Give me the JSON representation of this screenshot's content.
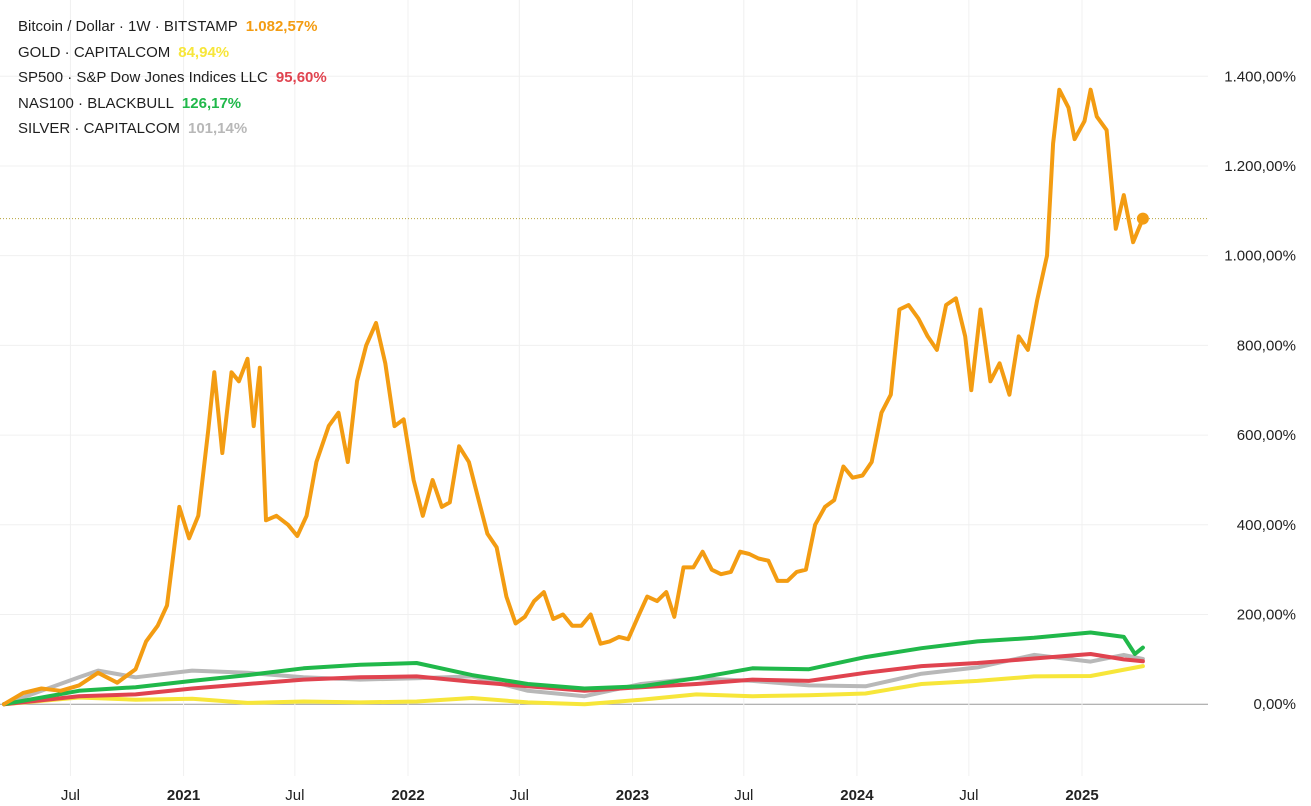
{
  "legend": [
    {
      "label": "Bitcoin / Dollar · 1W · BITSTAMP",
      "value": "1.082,57%",
      "color": "#f39c12"
    },
    {
      "label": "GOLD · CAPITALCOM",
      "value": "84,94%",
      "color": "#f7e63a"
    },
    {
      "label": "SP500 · S&P Dow Jones Indices LLC",
      "value": "95,60%",
      "color": "#e0434f"
    },
    {
      "label": "NAS100 · BLACKBULL",
      "value": "126,17%",
      "color": "#20b84a"
    },
    {
      "label": "SILVER · CAPITALCOM",
      "value": "101,14%",
      "color": "#b8b8b8"
    }
  ],
  "chart_data": {
    "type": "line",
    "x_ticks": [
      {
        "label": "Jul",
        "x": "2020-07-01",
        "bold": false
      },
      {
        "label": "2021",
        "x": "2021-01-01",
        "bold": true
      },
      {
        "label": "Jul",
        "x": "2021-07-01",
        "bold": false
      },
      {
        "label": "2022",
        "x": "2022-01-01",
        "bold": true
      },
      {
        "label": "Jul",
        "x": "2022-07-01",
        "bold": false
      },
      {
        "label": "2023",
        "x": "2023-01-01",
        "bold": true
      },
      {
        "label": "Jul",
        "x": "2023-07-01",
        "bold": false
      },
      {
        "label": "2024",
        "x": "2024-01-01",
        "bold": true
      },
      {
        "label": "Jul",
        "x": "2024-07-01",
        "bold": false
      },
      {
        "label": "2025",
        "x": "2025-01-01",
        "bold": true
      }
    ],
    "y_ticks": [
      {
        "value": 0,
        "label": "0,00%"
      },
      {
        "value": 200,
        "label": "200,00%"
      },
      {
        "value": 400,
        "label": "400,00%"
      },
      {
        "value": 600,
        "label": "600,00%"
      },
      {
        "value": 800,
        "label": "800,00%"
      },
      {
        "value": 1000,
        "label": "1.000,00%"
      },
      {
        "value": 1200,
        "label": "1.200,00%"
      },
      {
        "value": 1400,
        "label": "1.400,00%"
      }
    ],
    "ylim": [
      -160,
      1570
    ],
    "xlim": [
      "2020-03-15",
      "2025-07-20"
    ],
    "grid": true,
    "last_value_line": {
      "series": "Bitcoin / Dollar · 1W · BITSTAMP",
      "value": 1082.57
    },
    "series": [
      {
        "name": "Bitcoin / Dollar · 1W · BITSTAMP",
        "color": "#f39c12",
        "points": [
          [
            "2020-03-15",
            0
          ],
          [
            "2020-04-15",
            25
          ],
          [
            "2020-05-15",
            35
          ],
          [
            "2020-06-15",
            30
          ],
          [
            "2020-07-15",
            42
          ],
          [
            "2020-08-15",
            70
          ],
          [
            "2020-09-15",
            48
          ],
          [
            "2020-10-15",
            78
          ],
          [
            "2020-11-01",
            140
          ],
          [
            "2020-11-20",
            175
          ],
          [
            "2020-12-05",
            220
          ],
          [
            "2020-12-25",
            440
          ],
          [
            "2021-01-10",
            370
          ],
          [
            "2021-01-25",
            420
          ],
          [
            "2021-02-10",
            610
          ],
          [
            "2021-02-20",
            740
          ],
          [
            "2021-03-05",
            560
          ],
          [
            "2021-03-20",
            740
          ],
          [
            "2021-04-01",
            720
          ],
          [
            "2021-04-15",
            770
          ],
          [
            "2021-04-25",
            620
          ],
          [
            "2021-05-05",
            750
          ],
          [
            "2021-05-15",
            410
          ],
          [
            "2021-06-01",
            420
          ],
          [
            "2021-06-20",
            400
          ],
          [
            "2021-07-05",
            375
          ],
          [
            "2021-07-20",
            420
          ],
          [
            "2021-08-05",
            540
          ],
          [
            "2021-08-25",
            620
          ],
          [
            "2021-09-10",
            650
          ],
          [
            "2021-09-25",
            540
          ],
          [
            "2021-10-10",
            720
          ],
          [
            "2021-10-25",
            800
          ],
          [
            "2021-11-10",
            850
          ],
          [
            "2021-11-25",
            760
          ],
          [
            "2021-12-10",
            620
          ],
          [
            "2021-12-25",
            635
          ],
          [
            "2022-01-10",
            500
          ],
          [
            "2022-01-25",
            420
          ],
          [
            "2022-02-10",
            500
          ],
          [
            "2022-02-25",
            440
          ],
          [
            "2022-03-10",
            450
          ],
          [
            "2022-03-25",
            575
          ],
          [
            "2022-04-10",
            540
          ],
          [
            "2022-04-25",
            460
          ],
          [
            "2022-05-10",
            380
          ],
          [
            "2022-05-25",
            350
          ],
          [
            "2022-06-10",
            240
          ],
          [
            "2022-06-25",
            180
          ],
          [
            "2022-07-10",
            195
          ],
          [
            "2022-07-25",
            230
          ],
          [
            "2022-08-10",
            250
          ],
          [
            "2022-08-25",
            190
          ],
          [
            "2022-09-10",
            200
          ],
          [
            "2022-09-25",
            175
          ],
          [
            "2022-10-10",
            175
          ],
          [
            "2022-10-25",
            200
          ],
          [
            "2022-11-10",
            135
          ],
          [
            "2022-11-25",
            140
          ],
          [
            "2022-12-10",
            150
          ],
          [
            "2022-12-25",
            145
          ],
          [
            "2023-01-10",
            195
          ],
          [
            "2023-01-25",
            240
          ],
          [
            "2023-02-10",
            230
          ],
          [
            "2023-02-25",
            250
          ],
          [
            "2023-03-10",
            195
          ],
          [
            "2023-03-25",
            305
          ],
          [
            "2023-04-10",
            305
          ],
          [
            "2023-04-25",
            340
          ],
          [
            "2023-05-10",
            300
          ],
          [
            "2023-05-25",
            290
          ],
          [
            "2023-06-10",
            295
          ],
          [
            "2023-06-25",
            340
          ],
          [
            "2023-07-10",
            335
          ],
          [
            "2023-07-25",
            325
          ],
          [
            "2023-08-10",
            320
          ],
          [
            "2023-08-25",
            275
          ],
          [
            "2023-09-10",
            275
          ],
          [
            "2023-09-25",
            295
          ],
          [
            "2023-10-10",
            300
          ],
          [
            "2023-10-25",
            400
          ],
          [
            "2023-11-10",
            440
          ],
          [
            "2023-11-25",
            455
          ],
          [
            "2023-12-10",
            530
          ],
          [
            "2023-12-25",
            505
          ],
          [
            "2024-01-10",
            510
          ],
          [
            "2024-01-25",
            540
          ],
          [
            "2024-02-10",
            650
          ],
          [
            "2024-02-25",
            690
          ],
          [
            "2024-03-10",
            880
          ],
          [
            "2024-03-25",
            890
          ],
          [
            "2024-04-10",
            860
          ],
          [
            "2024-04-25",
            820
          ],
          [
            "2024-05-10",
            790
          ],
          [
            "2024-05-25",
            890
          ],
          [
            "2024-06-10",
            905
          ],
          [
            "2024-06-25",
            820
          ],
          [
            "2024-07-05",
            700
          ],
          [
            "2024-07-20",
            880
          ],
          [
            "2024-08-05",
            720
          ],
          [
            "2024-08-20",
            760
          ],
          [
            "2024-09-05",
            690
          ],
          [
            "2024-09-20",
            820
          ],
          [
            "2024-10-05",
            790
          ],
          [
            "2024-10-20",
            900
          ],
          [
            "2024-11-05",
            1000
          ],
          [
            "2024-11-15",
            1250
          ],
          [
            "2024-11-25",
            1370
          ],
          [
            "2024-12-10",
            1330
          ],
          [
            "2024-12-20",
            1260
          ],
          [
            "2025-01-05",
            1300
          ],
          [
            "2025-01-15",
            1370
          ],
          [
            "2025-01-25",
            1310
          ],
          [
            "2025-02-10",
            1280
          ],
          [
            "2025-02-25",
            1060
          ],
          [
            "2025-03-10",
            1135
          ],
          [
            "2025-03-25",
            1030
          ],
          [
            "2025-04-10",
            1082.57
          ]
        ]
      },
      {
        "name": "GOLD · CAPITALCOM",
        "color": "#f7e63a",
        "points": [
          [
            "2020-03-15",
            0
          ],
          [
            "2020-07-15",
            15
          ],
          [
            "2020-10-15",
            10
          ],
          [
            "2021-01-15",
            12
          ],
          [
            "2021-04-15",
            3
          ],
          [
            "2021-07-15",
            6
          ],
          [
            "2021-10-15",
            4
          ],
          [
            "2022-01-15",
            6
          ],
          [
            "2022-04-15",
            14
          ],
          [
            "2022-07-15",
            4
          ],
          [
            "2022-10-15",
            0
          ],
          [
            "2023-01-15",
            10
          ],
          [
            "2023-04-15",
            22
          ],
          [
            "2023-07-15",
            18
          ],
          [
            "2023-10-15",
            20
          ],
          [
            "2024-01-15",
            24
          ],
          [
            "2024-04-15",
            45
          ],
          [
            "2024-07-15",
            52
          ],
          [
            "2024-10-15",
            62
          ],
          [
            "2025-01-15",
            63
          ],
          [
            "2025-04-10",
            84.94
          ]
        ]
      },
      {
        "name": "SP500 · S&P Dow Jones Indices LLC",
        "color": "#e0434f",
        "points": [
          [
            "2020-03-15",
            0
          ],
          [
            "2020-07-15",
            18
          ],
          [
            "2020-10-15",
            22
          ],
          [
            "2021-01-15",
            35
          ],
          [
            "2021-04-15",
            45
          ],
          [
            "2021-07-15",
            55
          ],
          [
            "2021-10-15",
            60
          ],
          [
            "2022-01-15",
            62
          ],
          [
            "2022-04-15",
            50
          ],
          [
            "2022-07-15",
            40
          ],
          [
            "2022-10-15",
            30
          ],
          [
            "2023-01-15",
            38
          ],
          [
            "2023-04-15",
            45
          ],
          [
            "2023-07-15",
            55
          ],
          [
            "2023-10-15",
            52
          ],
          [
            "2024-01-15",
            70
          ],
          [
            "2024-04-15",
            85
          ],
          [
            "2024-07-15",
            92
          ],
          [
            "2024-10-15",
            102
          ],
          [
            "2025-01-15",
            112
          ],
          [
            "2025-03-10",
            100
          ],
          [
            "2025-04-10",
            95.6
          ]
        ]
      },
      {
        "name": "NAS100 · BLACKBULL",
        "color": "#20b84a",
        "points": [
          [
            "2020-03-15",
            0
          ],
          [
            "2020-07-15",
            30
          ],
          [
            "2020-10-15",
            38
          ],
          [
            "2021-01-15",
            52
          ],
          [
            "2021-04-15",
            65
          ],
          [
            "2021-07-15",
            80
          ],
          [
            "2021-10-15",
            88
          ],
          [
            "2022-01-15",
            92
          ],
          [
            "2022-04-15",
            65
          ],
          [
            "2022-07-15",
            45
          ],
          [
            "2022-10-15",
            35
          ],
          [
            "2023-01-15",
            40
          ],
          [
            "2023-04-15",
            58
          ],
          [
            "2023-07-15",
            80
          ],
          [
            "2023-10-15",
            78
          ],
          [
            "2024-01-15",
            105
          ],
          [
            "2024-04-15",
            125
          ],
          [
            "2024-07-15",
            140
          ],
          [
            "2024-10-15",
            148
          ],
          [
            "2025-01-15",
            160
          ],
          [
            "2025-03-10",
            150
          ],
          [
            "2025-03-28",
            112
          ],
          [
            "2025-04-10",
            126.17
          ]
        ]
      },
      {
        "name": "SILVER · CAPITALCOM",
        "color": "#b8b8b8",
        "points": [
          [
            "2020-03-15",
            0
          ],
          [
            "2020-07-15",
            60
          ],
          [
            "2020-08-15",
            75
          ],
          [
            "2020-10-15",
            60
          ],
          [
            "2021-01-15",
            75
          ],
          [
            "2021-04-15",
            70
          ],
          [
            "2021-07-15",
            60
          ],
          [
            "2021-10-15",
            55
          ],
          [
            "2022-01-15",
            58
          ],
          [
            "2022-04-15",
            62
          ],
          [
            "2022-07-15",
            30
          ],
          [
            "2022-10-15",
            18
          ],
          [
            "2023-01-15",
            45
          ],
          [
            "2023-04-15",
            58
          ],
          [
            "2023-07-15",
            52
          ],
          [
            "2023-10-15",
            42
          ],
          [
            "2024-01-15",
            40
          ],
          [
            "2024-04-15",
            68
          ],
          [
            "2024-07-15",
            82
          ],
          [
            "2024-10-15",
            110
          ],
          [
            "2025-01-15",
            95
          ],
          [
            "2025-03-10",
            110
          ],
          [
            "2025-04-10",
            101.14
          ]
        ]
      }
    ]
  }
}
